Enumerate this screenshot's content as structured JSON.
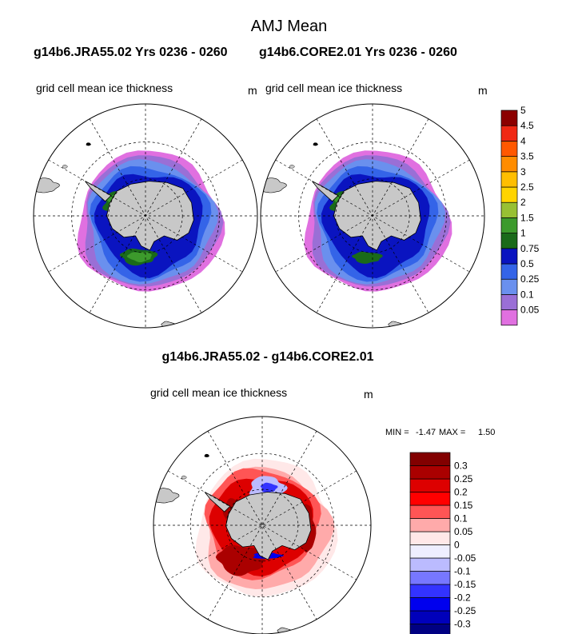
{
  "figure": {
    "title": "AMJ Mean",
    "left_case_title": "g14b6.JRA55.02  Yrs 0236 - 0260",
    "right_case_title": "g14b6.CORE2.01  Yrs 0236 - 0260",
    "diff_title": "g14b6.JRA55.02 - g14b6.CORE2.01"
  },
  "chart_data": [
    {
      "type": "heatmap",
      "projection": "south-polar-stereographic",
      "title": "g14b6.JRA55.02  Yrs 0236 - 0260",
      "subtitle": "grid cell mean ice thickness",
      "units": "m",
      "contour_levels": [
        "0.05",
        "0.1",
        "0.25",
        "0.5",
        "0.75",
        "1",
        "1.5",
        "2",
        "2.5",
        "3",
        "3.5",
        "4",
        "4.5",
        "5"
      ]
    },
    {
      "type": "heatmap",
      "projection": "south-polar-stereographic",
      "title": "g14b6.CORE2.01  Yrs 0236 - 0260",
      "subtitle": "grid cell mean ice thickness",
      "units": "m",
      "contour_levels": [
        "0.05",
        "0.1",
        "0.25",
        "0.5",
        "0.75",
        "1",
        "1.5",
        "2",
        "2.5",
        "3",
        "3.5",
        "4",
        "4.5",
        "5"
      ]
    },
    {
      "type": "heatmap",
      "projection": "south-polar-stereographic",
      "title": "g14b6.JRA55.02 - g14b6.CORE2.01",
      "subtitle": "grid cell mean ice thickness",
      "units": "m",
      "min_label": "MIN =",
      "min": "-1.47",
      "max_label": "MAX =",
      "max": "1.50",
      "contour_levels": [
        "-0.3",
        "-0.25",
        "-0.2",
        "-0.15",
        "-0.1",
        "-0.05",
        "0",
        "0.05",
        "0.1",
        "0.15",
        "0.2",
        "0.25",
        "0.3"
      ]
    }
  ],
  "colors": {
    "thickness": [
      "#e070e0",
      "#9a6fd6",
      "#6a90ee",
      "#3464e8",
      "#0a14c0",
      "#1a6a1a",
      "#3c9a2c",
      "#98c034",
      "#ffd400",
      "#ffbe00",
      "#ff8c00",
      "#ff5800",
      "#f02814",
      "#8c0000"
    ],
    "difference": [
      "#000082",
      "#0000bb",
      "#0000ee",
      "#3333ff",
      "#7777ff",
      "#bbbbff",
      "#eeeeff",
      "#ffe8e8",
      "#ffaaaa",
      "#ff5555",
      "#ff0000",
      "#dd0000",
      "#aa0000",
      "#820000"
    ],
    "land": "#c8c8c8"
  }
}
